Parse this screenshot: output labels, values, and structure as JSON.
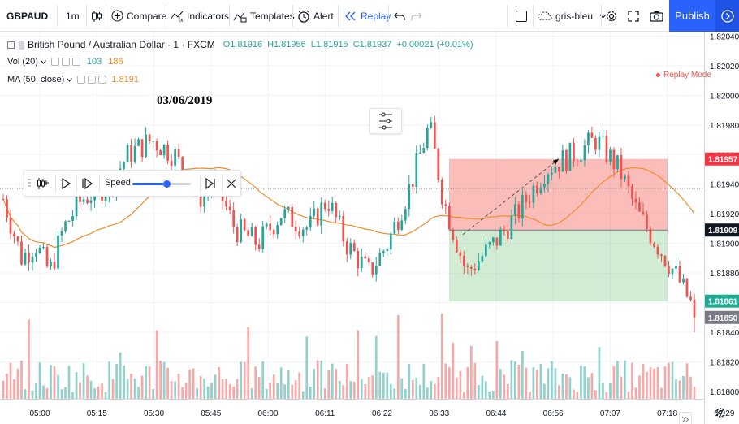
{
  "toolbar": {
    "symbol": "GBPAUD",
    "interval": "1m",
    "compare_label": "Compare",
    "indicators_label": "Indicators",
    "templates_label": "Templates",
    "alert_label": "Alert",
    "replay_label": "Replay",
    "layout_name": "gris-bleu",
    "publish_label": "Publish"
  },
  "legend": {
    "title": "British Pound / Australian Dollar · 1 · FXCM",
    "open": "O1.81916",
    "high": "H1.81956",
    "low": "L1.81915",
    "close": "C1.81937",
    "change": "+0.00021 (+0.01%)",
    "vol_label": "Vol (20)",
    "vol_value1": "103",
    "vol_value2": "186",
    "ma_label": "MA (50, close)",
    "ma_value": "1.8191"
  },
  "annotation_date": "03/06/2019",
  "replay_mode_label": "Replay Mode",
  "replay_panel": {
    "speed_label": "Speed",
    "speed_level": 0.58
  },
  "colors": {
    "up": "#26a69a",
    "down": "#ef5350",
    "ma": "#f28c28",
    "accent": "#2962ff",
    "stop_zone": "#f44336",
    "target_zone": "#4caf50"
  },
  "chart_data": {
    "type": "candlestick",
    "price_axis": {
      "ticks": [
        "1.82040",
        "1.82020",
        "1.82000",
        "1.81980",
        "1.81960",
        "1.81940",
        "1.81920",
        "1.81900",
        "1.81880",
        "1.81860",
        "1.81840",
        "1.81820",
        "1.81800"
      ],
      "range": [
        1.81795,
        1.82043
      ]
    },
    "time_axis": {
      "ticks": [
        "05:00",
        "05:15",
        "05:30",
        "05:45",
        "06:00",
        "06:11",
        "06:22",
        "06:33",
        "06:44",
        "06:56",
        "07:07",
        "07:18",
        "07:29"
      ]
    },
    "price_labels": [
      {
        "value": "1.81957",
        "kind": "stop"
      },
      {
        "value": "1.81909",
        "kind": "entry"
      },
      {
        "value": "1.81861",
        "kind": "target"
      },
      {
        "value": "1.81850",
        "kind": "last"
      }
    ],
    "position": {
      "entry": 1.81909,
      "stop": 1.81957,
      "target": 1.81861
    }
  }
}
